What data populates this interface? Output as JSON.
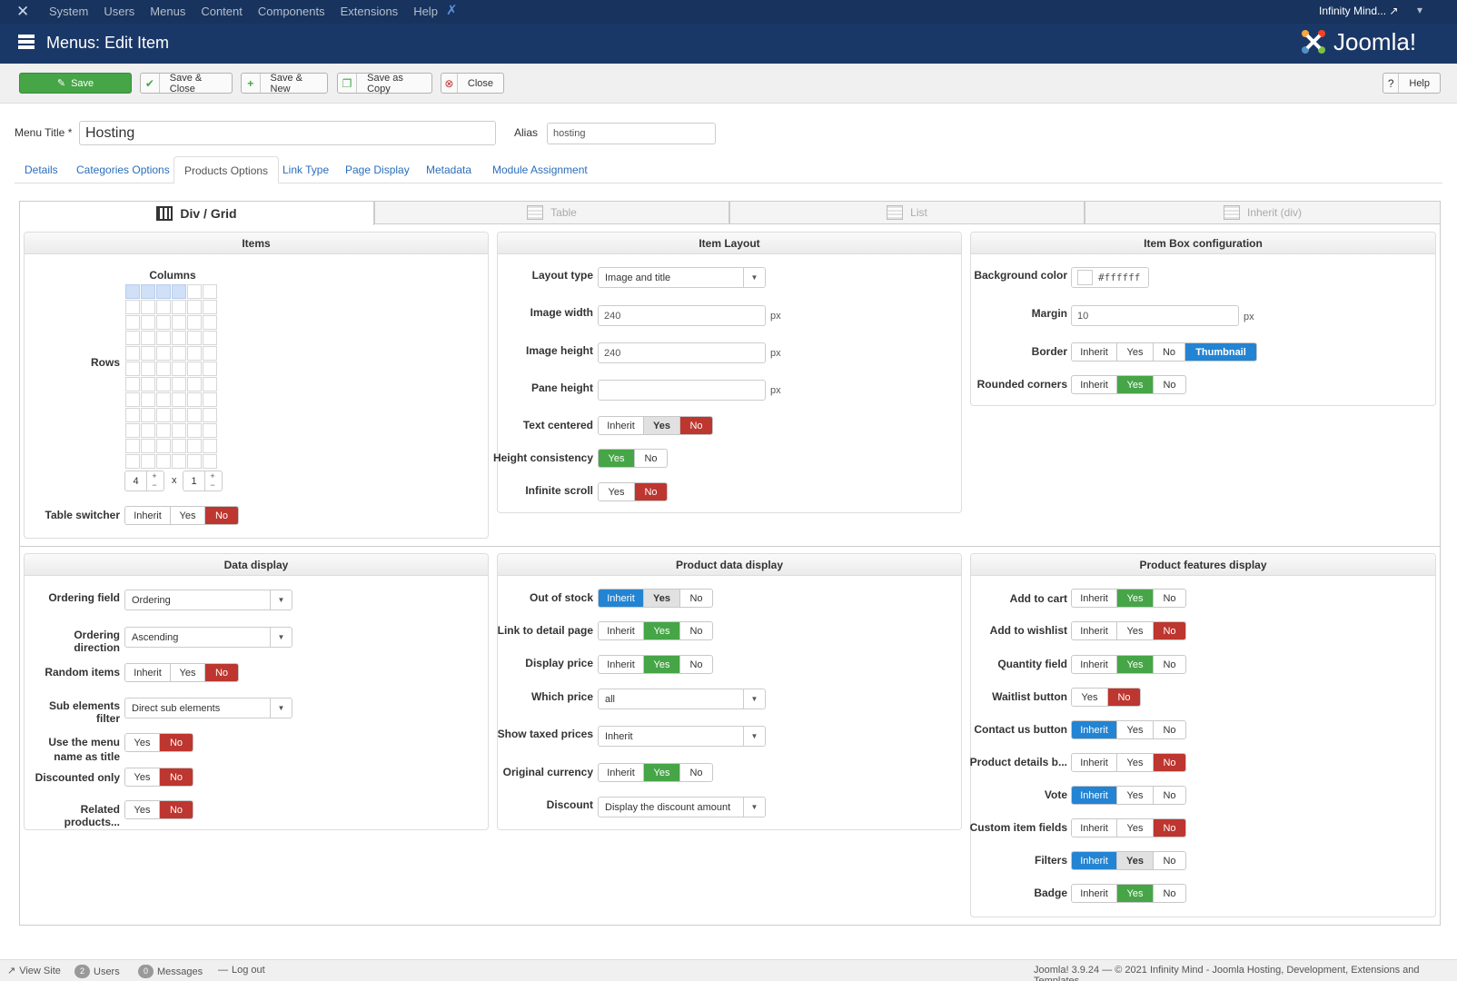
{
  "topbar": {
    "menus": [
      "System",
      "Users",
      "Menus",
      "Content",
      "Components",
      "Extensions",
      "Help"
    ],
    "user": "Infinity Mind..."
  },
  "header": {
    "title": "Menus: Edit Item",
    "logo_text": "Joomla!"
  },
  "toolbar": {
    "save": "Save",
    "save_close": "Save & Close",
    "save_new": "Save & New",
    "save_copy": "Save as Copy",
    "close": "Close",
    "help": "Help"
  },
  "form": {
    "menu_title_label": "Menu Title *",
    "menu_title_value": "Hosting",
    "alias_label": "Alias",
    "alias_value": "hosting"
  },
  "tabs": [
    "Details",
    "Categories Options",
    "Products Options",
    "Link Type",
    "Page Display",
    "Metadata",
    "Module Assignment"
  ],
  "view_tabs": [
    "Div / Grid",
    "Table",
    "List",
    "Inherit (div)"
  ],
  "items": {
    "title": "Items",
    "columns_label": "Columns",
    "rows_label": "Rows",
    "cols_value": "4",
    "rows_value": "1",
    "x": "x",
    "table_switcher": "Table switcher",
    "ts_opts": [
      "Inherit",
      "Yes",
      "No"
    ]
  },
  "item_layout": {
    "title": "Item Layout",
    "layout_type": "Layout type",
    "layout_type_value": "Image and title",
    "image_width": "Image width",
    "image_width_value": "240",
    "image_height": "Image height",
    "image_height_value": "240",
    "pane_height": "Pane height",
    "px": "px",
    "text_centered": "Text centered",
    "tc_opts": [
      "Inherit",
      "Yes",
      "No"
    ],
    "height_consistency": "Height consistency",
    "hc_opts": [
      "Yes",
      "No"
    ],
    "infinite_scroll": "Infinite scroll",
    "is_opts": [
      "Yes",
      "No"
    ]
  },
  "item_box": {
    "title": "Item Box configuration",
    "bg_color": "Background color",
    "bg_color_value": "#ffffff",
    "margin": "Margin",
    "margin_value": "10",
    "px": "px",
    "border": "Border",
    "border_opts": [
      "Inherit",
      "Yes",
      "No",
      "Thumbnail"
    ],
    "rounded": "Rounded corners",
    "rounded_opts": [
      "Inherit",
      "Yes",
      "No"
    ]
  },
  "data_display": {
    "title": "Data display",
    "ordering_field": "Ordering field",
    "ordering_field_value": "Ordering",
    "ordering_direction": "Ordering direction",
    "ordering_direction_value": "Ascending",
    "random_items": "Random items",
    "ri_opts": [
      "Inherit",
      "Yes",
      "No"
    ],
    "sub_filter": "Sub elements filter",
    "sub_filter_value": "Direct sub elements",
    "use_menu_1": "Use the menu",
    "use_menu_2": "name as title",
    "um_opts": [
      "Yes",
      "No"
    ],
    "discounted": "Discounted only",
    "do_opts": [
      "Yes",
      "No"
    ],
    "related": "Related products...",
    "rp_opts": [
      "Yes",
      "No"
    ]
  },
  "product_data": {
    "title": "Product data display",
    "out_of_stock": "Out of stock",
    "oos_opts": [
      "Inherit",
      "Yes",
      "No"
    ],
    "link_detail": "Link to detail page",
    "ld_opts": [
      "Inherit",
      "Yes",
      "No"
    ],
    "display_price": "Display price",
    "dp_opts": [
      "Inherit",
      "Yes",
      "No"
    ],
    "which_price": "Which price",
    "which_price_value": "all",
    "show_taxed": "Show taxed prices",
    "show_taxed_value": "Inherit",
    "orig_currency": "Original currency",
    "oc_opts": [
      "Inherit",
      "Yes",
      "No"
    ],
    "discount": "Discount",
    "discount_value": "Display the discount amount"
  },
  "features": {
    "title": "Product features display",
    "add_cart": "Add to cart",
    "ac_opts": [
      "Inherit",
      "Yes",
      "No"
    ],
    "add_wish": "Add to wishlist",
    "aw_opts": [
      "Inherit",
      "Yes",
      "No"
    ],
    "qty": "Quantity field",
    "qf_opts": [
      "Inherit",
      "Yes",
      "No"
    ],
    "waitlist": "Waitlist button",
    "wl_opts": [
      "Yes",
      "No"
    ],
    "contact": "Contact us button",
    "cu_opts": [
      "Inherit",
      "Yes",
      "No"
    ],
    "details": "Product details b...",
    "pd_opts": [
      "Inherit",
      "Yes",
      "No"
    ],
    "vote": "Vote",
    "vo_opts": [
      "Inherit",
      "Yes",
      "No"
    ],
    "custom": "Custom item fields",
    "ci_opts": [
      "Inherit",
      "Yes",
      "No"
    ],
    "filters": "Filters",
    "fi_opts": [
      "Inherit",
      "Yes",
      "No"
    ],
    "badge": "Badge",
    "ba_opts": [
      "Inherit",
      "Yes",
      "No"
    ]
  },
  "footer": {
    "view_site": "View Site",
    "users_count": "2",
    "users": "Users",
    "messages_count": "0",
    "messages": "Messages",
    "logout": "Log out",
    "copyright": "Joomla! 3.9.24  —  © 2021 Infinity Mind - Joomla Hosting, Development, Extensions and Templates"
  },
  "colors": {
    "topbar": "#17335e",
    "header": "#1a3867",
    "green": "#46a546",
    "red": "#bd362f",
    "blue": "#2384d3"
  }
}
